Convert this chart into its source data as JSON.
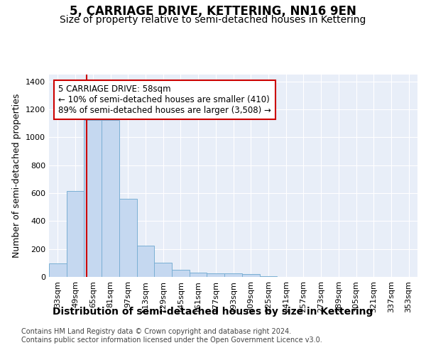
{
  "title": "5, CARRIAGE DRIVE, KETTERING, NN16 9EN",
  "subtitle": "Size of property relative to semi-detached houses in Kettering",
  "xlabel": "Distribution of semi-detached houses by size in Kettering",
  "ylabel": "Number of semi-detached properties",
  "categories": [
    "33sqm",
    "49sqm",
    "65sqm",
    "81sqm",
    "97sqm",
    "113sqm",
    "129sqm",
    "145sqm",
    "161sqm",
    "177sqm",
    "193sqm",
    "209sqm",
    "225sqm",
    "241sqm",
    "257sqm",
    "273sqm",
    "289sqm",
    "305sqm",
    "321sqm",
    "337sqm",
    "353sqm"
  ],
  "values": [
    95,
    615,
    1125,
    1125,
    560,
    225,
    100,
    50,
    30,
    25,
    25,
    20,
    5,
    0,
    0,
    0,
    0,
    0,
    0,
    0,
    0
  ],
  "bar_color": "#c5d8f0",
  "bar_edge_color": "#7aafd4",
  "vline_x": 1.625,
  "vline_color": "#cc0000",
  "annotation_text": "5 CARRIAGE DRIVE: 58sqm\n← 10% of semi-detached houses are smaller (410)\n89% of semi-detached houses are larger (3,508) →",
  "annotation_box_color": "#ffffff",
  "annotation_border_color": "#cc0000",
  "ylim": [
    0,
    1450
  ],
  "yticks": [
    0,
    200,
    400,
    600,
    800,
    1000,
    1200,
    1400
  ],
  "footer1": "Contains HM Land Registry data © Crown copyright and database right 2024.",
  "footer2": "Contains public sector information licensed under the Open Government Licence v3.0.",
  "background_color": "#e8eef8",
  "grid_color": "#ffffff",
  "title_fontsize": 12,
  "subtitle_fontsize": 10,
  "xlabel_fontsize": 10,
  "ylabel_fontsize": 9,
  "tick_fontsize": 8,
  "annotation_fontsize": 8.5,
  "footer_fontsize": 7
}
